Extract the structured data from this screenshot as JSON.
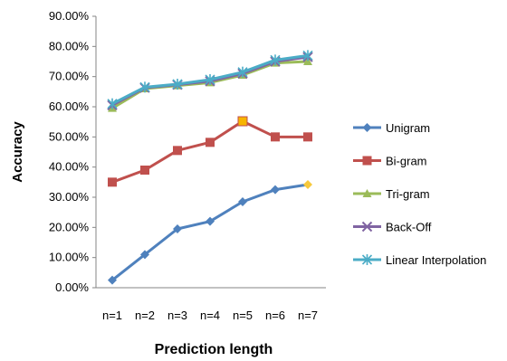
{
  "chart_data": {
    "type": "line",
    "categories": [
      "n=1",
      "n=2",
      "n=3",
      "n=4",
      "n=5",
      "n=6",
      "n=7"
    ],
    "xlabel": "Prediction length",
    "ylabel": "Accuracy",
    "ylim": [
      0,
      90
    ],
    "ytick_labels": [
      "0.00%",
      "10.00%",
      "20.00%",
      "30.00%",
      "40.00%",
      "50.00%",
      "60.00%",
      "70.00%",
      "80.00%",
      "90.00%"
    ],
    "grid": false,
    "legend_position": "right",
    "series": [
      {
        "name": "Unigram",
        "color": "#4F81BD",
        "marker": "diamond",
        "values": [
          2.5,
          11.0,
          19.5,
          22.0,
          28.5,
          32.5,
          34.2
        ]
      },
      {
        "name": "Bi-gram",
        "color": "#C0504D",
        "marker": "square",
        "values": [
          35.0,
          39.0,
          45.5,
          48.2,
          55.2,
          50.0,
          50.0
        ]
      },
      {
        "name": "Tri-gram",
        "color": "#9BBB59",
        "marker": "triangle",
        "values": [
          59.5,
          66.0,
          67.0,
          68.0,
          70.5,
          74.5,
          75.0
        ]
      },
      {
        "name": "Back-Off",
        "color": "#8064A2",
        "marker": "x",
        "values": [
          60.5,
          66.3,
          67.3,
          68.5,
          71.0,
          75.0,
          76.5
        ]
      },
      {
        "name": "Linear Interpolation",
        "color": "#4BACC6",
        "marker": "asterisk",
        "values": [
          61.0,
          66.5,
          67.5,
          69.0,
          71.5,
          75.5,
          77.0
        ]
      }
    ]
  }
}
